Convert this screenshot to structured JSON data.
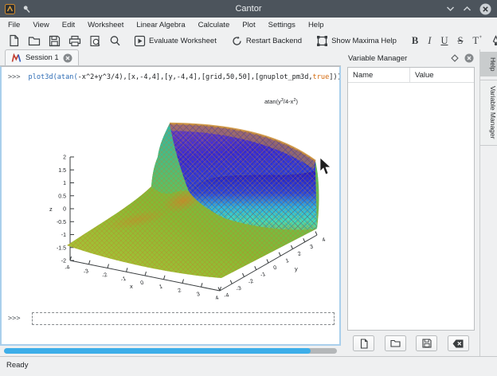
{
  "window": {
    "title": "Cantor"
  },
  "menu": {
    "items": [
      "File",
      "View",
      "Edit",
      "Worksheet",
      "Linear Algebra",
      "Calculate",
      "Plot",
      "Settings",
      "Help"
    ]
  },
  "toolbar": {
    "evaluate_label": "Evaluate Worksheet",
    "restart_label": "Restart Backend",
    "maxima_help_label": "Show Maxima Help",
    "bold_glyph": "B",
    "italic_glyph": "I",
    "underline_glyph": "U",
    "strikethrough_glyph": "S",
    "superscript_glyph": "T",
    "superscript_mark": "⁺"
  },
  "tabbar": {
    "session_tab": "Session 1"
  },
  "worksheet": {
    "prompt": ">>>",
    "command_segments": [
      {
        "text": "plot3d("
      },
      {
        "text": "atan("
      },
      {
        "text": "-x^2+y^3/4),[x,-4,4],[y,-4,4],[grid,50,50],[gnuplot_pm3d,"
      },
      {
        "text": "true"
      },
      {
        "text": "]));"
      }
    ],
    "next_prompt": ">>>"
  },
  "plot": {
    "type": "surface",
    "expression": "atan(y^3/4-x^2)",
    "annotation_parts": [
      {
        "t": "atan(y"
      },
      {
        "t": "3",
        "sup": true
      },
      {
        "t": "/4-x"
      },
      {
        "t": "2",
        "sup": true
      },
      {
        "t": ")"
      }
    ],
    "x_label": "x",
    "y_label": "y",
    "z_label": "z",
    "x_range": [
      -4,
      4
    ],
    "y_range": [
      -4,
      4
    ],
    "z_range": [
      -2,
      2
    ],
    "x_ticks": [
      "-4",
      "-3",
      "-2",
      "-1",
      "0",
      "1",
      "2",
      "3",
      "4"
    ],
    "y_ticks": [
      "-4",
      "-3",
      "-2",
      "-1",
      "0",
      "1",
      "2",
      "3",
      "4"
    ],
    "z_ticks": [
      "2",
      "1.5",
      "1",
      "0.5",
      "0",
      "-0.5",
      "-1",
      "-1.5",
      "-2"
    ]
  },
  "variable_manager": {
    "title": "Variable Manager",
    "columns": [
      "Name",
      "Value"
    ]
  },
  "side_tabs": {
    "help": "Help",
    "variable_manager": "Variable Manager"
  },
  "status": {
    "ready_label": "Ready",
    "progress_percent": 92
  },
  "colors": {
    "accent": "#3daee9",
    "titlebar": "#4c545c",
    "keyword_blue": "#2d6cb5",
    "boolean_orange": "#d4690b",
    "progress_fill": "#3daee9",
    "worksheet_focus_border": "#a9cfec"
  }
}
